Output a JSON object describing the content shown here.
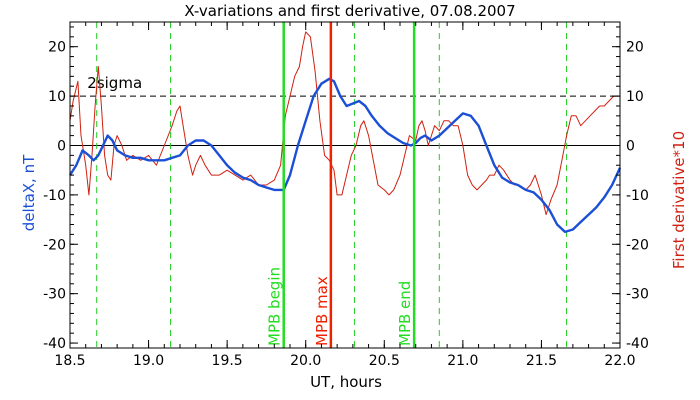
{
  "chart_data": {
    "type": "line",
    "title": "X-variations and first derivative, 07.08.2007",
    "xlabel": "UT, hours",
    "ylabel_left": "deltaX, nT",
    "ylabel_right": "First derivative*10",
    "xlim": [
      18.5,
      22.0
    ],
    "ylim_left": [
      -41,
      25
    ],
    "ylim_right": [
      -41,
      25
    ],
    "x_ticks": [
      "18.5",
      "19.0",
      "19.5",
      "20.0",
      "20.5",
      "21.0",
      "21.5",
      "22.0"
    ],
    "y_ticks_left": [
      "20",
      "10",
      "0",
      "-10",
      "-20",
      "-30",
      "-40"
    ],
    "y_ticks_right": [
      "20",
      "10",
      "0",
      "-10",
      "-20",
      "-30",
      "-40"
    ],
    "colors": {
      "deltaX": "#1a4fd6",
      "derivative": "#d02010",
      "mpb_lines": "#22dd22",
      "mpb_max": "#ee2200",
      "dashed_green": "#22cc22",
      "axes": "#000000"
    },
    "threshold": {
      "label": "2sigma",
      "value": 10
    },
    "zero_line": 0,
    "green_dashed_x": [
      18.67,
      19.14,
      20.31,
      20.85,
      21.66
    ],
    "vertical_markers": [
      {
        "x": 19.86,
        "label": "MPB begin",
        "color": "#22dd22"
      },
      {
        "x": 20.16,
        "label": "MPB max",
        "color": "#ee2200"
      },
      {
        "x": 20.69,
        "label": "MPB end",
        "color": "#22dd22"
      }
    ],
    "series": [
      {
        "name": "deltaX",
        "axis": "left",
        "x": [
          18.5,
          18.54,
          18.58,
          18.62,
          18.65,
          18.68,
          18.71,
          18.74,
          18.77,
          18.8,
          18.85,
          18.9,
          18.95,
          19.0,
          19.05,
          19.1,
          19.15,
          19.2,
          19.25,
          19.3,
          19.35,
          19.4,
          19.45,
          19.5,
          19.55,
          19.6,
          19.65,
          19.7,
          19.75,
          19.8,
          19.86,
          19.9,
          19.95,
          20.0,
          20.05,
          20.1,
          20.15,
          20.18,
          20.22,
          20.26,
          20.3,
          20.34,
          20.38,
          20.42,
          20.47,
          20.52,
          20.57,
          20.62,
          20.67,
          20.7,
          20.73,
          20.76,
          20.8,
          20.85,
          20.9,
          20.95,
          21.0,
          21.05,
          21.1,
          21.15,
          21.2,
          21.25,
          21.3,
          21.35,
          21.4,
          21.45,
          21.5,
          21.55,
          21.6,
          21.65,
          21.7,
          21.75,
          21.8,
          21.85,
          21.9,
          21.95,
          22.0
        ],
        "y": [
          -6,
          -4,
          -1,
          -2,
          -3,
          -2,
          0,
          2,
          1,
          -1,
          -2,
          -2.5,
          -2.5,
          -3,
          -3,
          -3,
          -2.5,
          -2,
          0,
          1,
          1,
          0,
          -2,
          -4,
          -5.5,
          -6.5,
          -7,
          -8,
          -8.5,
          -9,
          -9,
          -6,
          0,
          5,
          10,
          12.5,
          13.5,
          13,
          10,
          8,
          8.5,
          9,
          8,
          6,
          4,
          2.5,
          1.5,
          0.5,
          0,
          0.5,
          1.5,
          2,
          1,
          2,
          3.5,
          5,
          6.5,
          6,
          4,
          0,
          -4,
          -6.5,
          -7.5,
          -8,
          -9,
          -9.5,
          -11,
          -13,
          -16,
          -17.5,
          -17,
          -15.5,
          -14,
          -12.5,
          -10.5,
          -8,
          -4.5
        ]
      },
      {
        "name": "First derivative*10",
        "axis": "right",
        "x": [
          18.5,
          18.52,
          18.55,
          18.57,
          18.6,
          18.62,
          18.64,
          18.66,
          18.68,
          18.7,
          18.72,
          18.74,
          18.76,
          18.78,
          18.8,
          18.83,
          18.86,
          18.9,
          18.95,
          19.0,
          19.05,
          19.1,
          19.15,
          19.18,
          19.2,
          19.22,
          19.25,
          19.28,
          19.3,
          19.33,
          19.36,
          19.4,
          19.45,
          19.5,
          19.55,
          19.6,
          19.65,
          19.7,
          19.75,
          19.8,
          19.84,
          19.87,
          19.9,
          19.93,
          19.96,
          19.98,
          20.0,
          20.03,
          20.06,
          20.09,
          20.12,
          20.15,
          20.18,
          20.2,
          20.23,
          20.26,
          20.29,
          20.32,
          20.35,
          20.37,
          20.4,
          20.43,
          20.46,
          20.5,
          20.53,
          20.56,
          20.6,
          20.63,
          20.66,
          20.7,
          20.72,
          20.74,
          20.76,
          20.78,
          20.8,
          20.82,
          20.85,
          20.88,
          20.91,
          20.94,
          20.97,
          21.0,
          21.03,
          21.06,
          21.09,
          21.12,
          21.15,
          21.17,
          21.2,
          21.23,
          21.26,
          21.3,
          21.33,
          21.36,
          21.4,
          21.43,
          21.46,
          21.5,
          21.53,
          21.56,
          21.6,
          21.63,
          21.66,
          21.69,
          21.72,
          21.75,
          21.78,
          21.81,
          21.84,
          21.87,
          21.9,
          21.93,
          21.96,
          22.0
        ],
        "y": [
          5,
          9,
          13,
          2,
          -4,
          -10,
          -2,
          8,
          16,
          8,
          -2,
          -6,
          -7,
          0,
          2,
          0,
          -3,
          -2,
          -3,
          -2,
          -4,
          0,
          4,
          7,
          8,
          4,
          -2,
          -6,
          -4,
          -2,
          -4,
          -6,
          -6,
          -5,
          -6,
          -7,
          -6,
          -8,
          -8,
          -7,
          -4,
          6,
          10,
          14,
          16,
          20,
          23,
          22,
          15,
          5,
          -2,
          -3,
          -5,
          -10,
          -10,
          -6,
          -2,
          0,
          4,
          5,
          2,
          -3,
          -8,
          -9,
          -10,
          -9,
          -6,
          -2,
          2,
          1,
          4,
          5,
          3,
          0,
          2,
          4,
          3,
          5,
          5,
          4,
          4,
          0,
          -6,
          -8,
          -9,
          -8,
          -7,
          -6,
          -6,
          -4,
          -5,
          -7,
          -8,
          -8,
          -9,
          -8,
          -6,
          -10,
          -14,
          -11,
          -8,
          -3,
          2,
          6,
          6,
          4,
          5,
          6,
          7,
          8,
          8,
          9,
          10,
          10
        ]
      }
    ]
  }
}
